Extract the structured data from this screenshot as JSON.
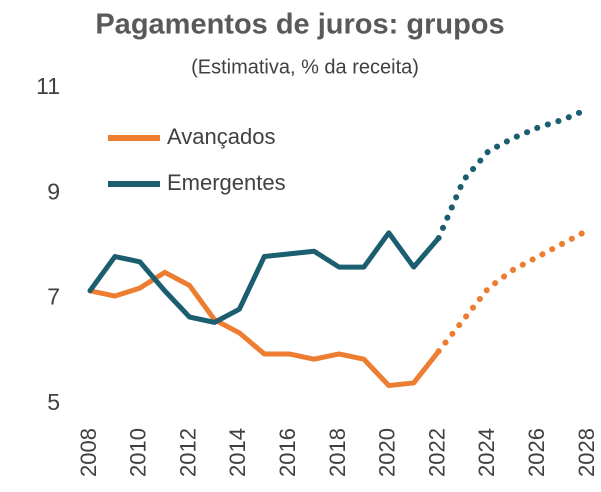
{
  "chart_data": {
    "type": "line",
    "title": "Pagamentos de juros:  grupos",
    "subtitle": "(Estimativa, % da receita)",
    "x": [
      2008,
      2009,
      2010,
      2011,
      2012,
      2013,
      2014,
      2015,
      2016,
      2017,
      2018,
      2019,
      2020,
      2021,
      2022,
      2023,
      2024,
      2025,
      2026,
      2027,
      2028
    ],
    "series": [
      {
        "name": "Avançados",
        "color": "#ED7D31",
        "values": [
          7.15,
          7.05,
          7.2,
          7.5,
          7.25,
          6.6,
          6.35,
          5.95,
          5.95,
          5.85,
          5.95,
          5.85,
          5.35,
          5.4,
          6.0,
          6.6,
          7.2,
          7.55,
          7.8,
          8.05,
          8.3
        ]
      },
      {
        "name": "Emergentes",
        "color": "#1B5E70",
        "values": [
          7.15,
          7.8,
          7.7,
          7.15,
          6.65,
          6.55,
          6.8,
          7.8,
          7.85,
          7.9,
          7.6,
          7.6,
          8.25,
          7.6,
          8.15,
          9.25,
          9.8,
          10.05,
          10.25,
          10.4,
          10.6
        ]
      }
    ],
    "dotted_from": 2022,
    "xlim": [
      2008,
      2028
    ],
    "xticks": [
      2008,
      2010,
      2012,
      2014,
      2016,
      2018,
      2020,
      2022,
      2024,
      2026,
      2028
    ],
    "ylim": [
      5,
      11
    ],
    "yticks": [
      5,
      7,
      9,
      11
    ],
    "grid": false
  }
}
